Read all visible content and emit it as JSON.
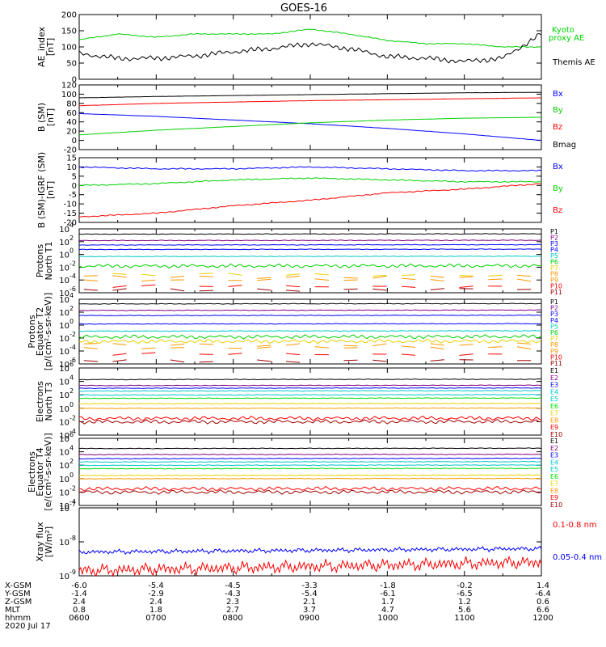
{
  "title": "GOES-16",
  "date": "2020 Jul 17",
  "footer": {
    "rows": [
      {
        "label": "X-GSM",
        "values": [
          "-6.0",
          "-5.4",
          "-4.5",
          "-3.3",
          "-1.8",
          "-0.2",
          "1.4"
        ]
      },
      {
        "label": "Y-GSM",
        "values": [
          "-1.4",
          "-2.9",
          "-4.3",
          "-5.4",
          "-6.1",
          "-6.5",
          "-6.4"
        ]
      },
      {
        "label": "Z-GSM",
        "values": [
          "2.4",
          "2.4",
          "2.3",
          "2.1",
          "1.7",
          "1.2",
          "0.6"
        ]
      },
      {
        "label": "MLT",
        "values": [
          "0.8",
          "1.8",
          "2.7",
          "3.7",
          "4.7",
          "5.6",
          "6.6"
        ]
      },
      {
        "label": "hhmm",
        "values": [
          "0600",
          "0700",
          "0800",
          "0900",
          "1000",
          "1100",
          "1200"
        ]
      }
    ]
  },
  "colors": {
    "black": "#000000",
    "red": "#ff0000",
    "green": "#00d000",
    "blue": "#0000ff",
    "cyan": "#00c8c8",
    "ltgreen": "#00e000",
    "yellow": "#e6d200",
    "orange": "#ff9900",
    "magenta": "#c000c0",
    "purple": "#800080",
    "darkred": "#a00000"
  },
  "chart_data": [
    {
      "type": "line",
      "ylabel": "AE_index [nT]",
      "ylim": [
        0,
        200
      ],
      "ytick_labels": [
        "0",
        "50",
        "100",
        "150",
        "200"
      ],
      "x": [
        "0600",
        "0630",
        "0700",
        "0730",
        "0800",
        "0830",
        "0900",
        "0930",
        "1000",
        "1030",
        "1100",
        "1130",
        "1200"
      ],
      "series": [
        {
          "name": "Kyoto proxy AE",
          "color": "green",
          "values": [
            122,
            140,
            130,
            140,
            140,
            140,
            155,
            140,
            120,
            110,
            110,
            100,
            100
          ]
        },
        {
          "name": "Themis AE",
          "color": "black",
          "values": [
            80,
            64,
            65,
            72,
            85,
            95,
            110,
            95,
            70,
            65,
            55,
            65,
            140
          ]
        }
      ]
    },
    {
      "type": "line",
      "ylabel": "B (SM) [nT]",
      "ylim": [
        -20,
        120
      ],
      "ytick_labels": [
        "-20",
        "0",
        "20",
        "40",
        "60",
        "80",
        "100",
        "120"
      ],
      "x": [
        "0600",
        "0700",
        "0800",
        "0900",
        "1000",
        "1100",
        "1200"
      ],
      "series": [
        {
          "name": "Bx",
          "color": "blue",
          "values": [
            58,
            52,
            44,
            36,
            26,
            14,
            0
          ]
        },
        {
          "name": "By",
          "color": "green",
          "values": [
            12,
            22,
            30,
            38,
            44,
            48,
            50
          ]
        },
        {
          "name": "Bz",
          "color": "red",
          "values": [
            75,
            80,
            83,
            86,
            88,
            90,
            92
          ]
        },
        {
          "name": "Bmag",
          "color": "black",
          "values": [
            92,
            95,
            97,
            99,
            101,
            103,
            104
          ]
        }
      ]
    },
    {
      "type": "line",
      "ylabel": "B (SM)-IGRF (SM) [nT]",
      "ylim": [
        -20,
        15
      ],
      "ytick_labels": [
        "-20",
        "-15",
        "-10",
        "-5",
        "0",
        "5",
        "10",
        "15"
      ],
      "x": [
        "0600",
        "0700",
        "0800",
        "0900",
        "1000",
        "1100",
        "1200"
      ],
      "series": [
        {
          "name": "Bx",
          "color": "blue",
          "values": [
            10,
            9,
            9,
            10,
            9,
            8,
            8
          ]
        },
        {
          "name": "By",
          "color": "green",
          "values": [
            0,
            1,
            3,
            4,
            3,
            2,
            2
          ]
        },
        {
          "name": "Bz",
          "color": "red",
          "values": [
            -17,
            -15,
            -11,
            -8,
            -4,
            -2,
            1
          ]
        }
      ]
    },
    {
      "type": "line",
      "ylabel": "Protons North T1",
      "ylog": true,
      "ylim_exp": [
        -6,
        4
      ],
      "ytick_exps": [
        -6,
        -4,
        -2,
        0,
        2,
        4
      ],
      "channels": [
        "P1",
        "P2",
        "P3",
        "P4",
        "P5",
        "P6",
        "P7",
        "P8",
        "P9",
        "P10",
        "P11"
      ],
      "channel_colors": [
        "black",
        "purple",
        "blue",
        "blue",
        "cyan",
        "green",
        "yellow",
        "orange",
        "orange",
        "red",
        "darkred"
      ],
      "levels_exp": [
        3.2,
        2.2,
        1.5,
        0.8,
        -0.3,
        -1.8,
        -3.2,
        -3.5,
        -4,
        -5,
        -5.5
      ]
    },
    {
      "type": "line",
      "ylabel": "Protons Equator T2 [p/(cm²-s-sr-keV)]",
      "ylog": true,
      "ylim_exp": [
        -6,
        4
      ],
      "ytick_exps": [
        -6,
        -4,
        -2,
        0,
        2,
        4
      ],
      "channels": [
        "P1",
        "P2",
        "P3",
        "P4",
        "P5",
        "P6",
        "P7",
        "P8",
        "P9",
        "P10",
        "P11"
      ],
      "channel_colors": [
        "black",
        "purple",
        "blue",
        "blue",
        "cyan",
        "green",
        "yellow",
        "orange",
        "orange",
        "red",
        "darkred"
      ],
      "levels_exp": [
        3.3,
        2.3,
        1.5,
        0.2,
        -0.9,
        -1.8,
        -2.5,
        -3,
        -3.5,
        -4.5,
        -5.5
      ]
    },
    {
      "type": "line",
      "ylabel": "Electrons North T3",
      "ylog": true,
      "ylim_exp": [
        -4,
        6
      ],
      "ytick_exps": [
        -4,
        -2,
        0,
        2,
        4,
        6
      ],
      "channels": [
        "E1",
        "E2",
        "E3",
        "E4",
        "E5",
        "E6",
        "E7",
        "E8",
        "E9",
        "E10"
      ],
      "channel_colors": [
        "black",
        "purple",
        "blue",
        "cyan",
        "cyan",
        "ltgreen",
        "yellow",
        "orange",
        "red",
        "darkred"
      ],
      "levels_exp": [
        4.3,
        3.4,
        3.0,
        2.6,
        2.0,
        1.5,
        0.7,
        0,
        -1.5,
        -2
      ]
    },
    {
      "type": "line",
      "ylabel": "Electrons Equator T4 [e/(cm²-s-sr-keV)]",
      "ylog": true,
      "ylim_exp": [
        -4,
        6
      ],
      "ytick_exps": [
        -4,
        -2,
        0,
        2,
        4,
        6
      ],
      "channels": [
        "E1",
        "E2",
        "E3",
        "E4",
        "E5",
        "E6",
        "E7",
        "E8",
        "E9",
        "E10"
      ],
      "channel_colors": [
        "black",
        "purple",
        "blue",
        "cyan",
        "cyan",
        "ltgreen",
        "yellow",
        "orange",
        "red",
        "darkred"
      ],
      "levels_exp": [
        4.5,
        3.6,
        3.0,
        2.5,
        2.0,
        1.5,
        0.5,
        0,
        -1.5,
        -2
      ]
    },
    {
      "type": "line",
      "ylabel": "Xray flux [W/m²]",
      "ylog": true,
      "ylim_exp": [
        -9,
        -7
      ],
      "ytick_exps": [
        -9,
        -8,
        -7
      ],
      "series": [
        {
          "name": "0.1-0.8 nm",
          "color": "red",
          "level_exp": -8.85
        },
        {
          "name": "0.05-0.4 nm",
          "color": "blue",
          "level_exp": -8.3
        }
      ]
    }
  ]
}
